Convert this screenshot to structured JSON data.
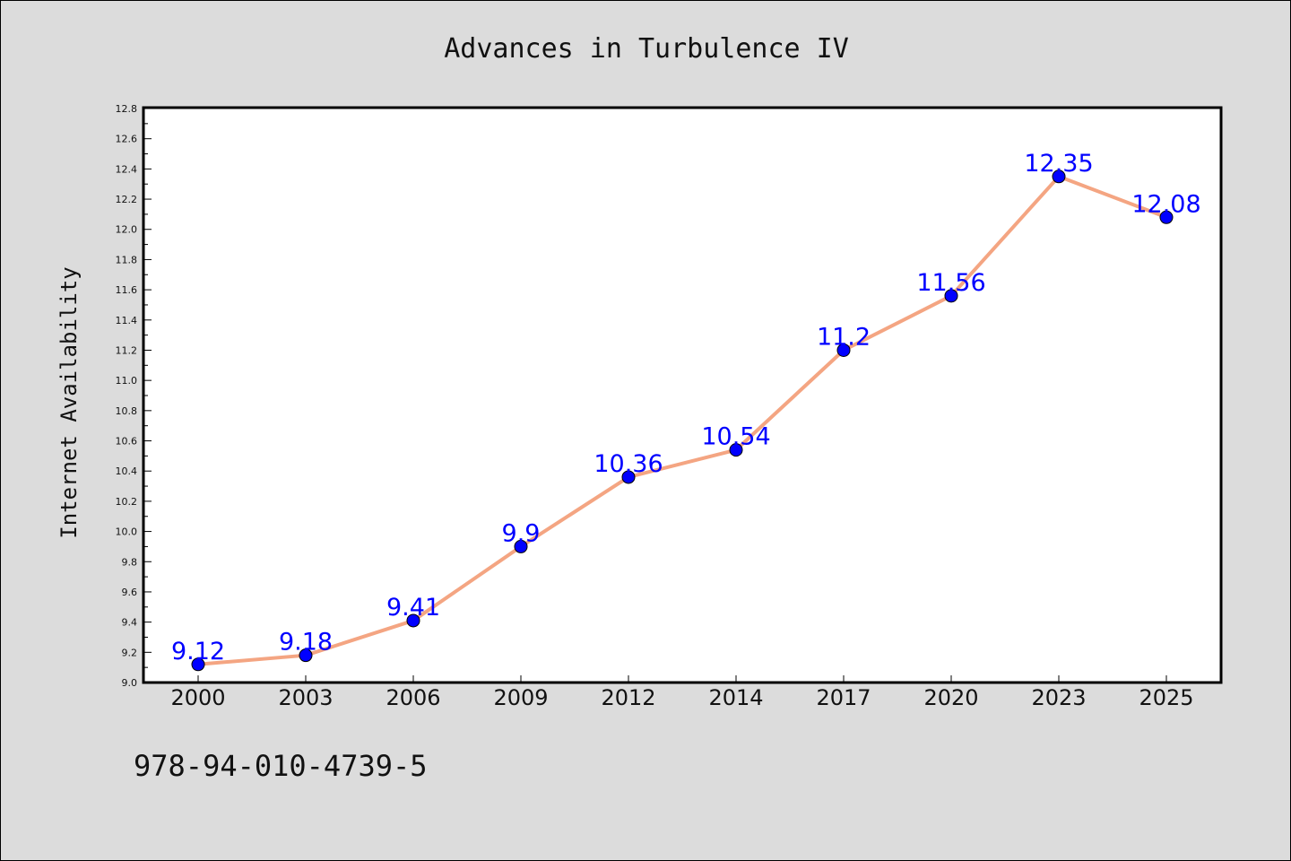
{
  "chart_data": {
    "type": "line",
    "title": "Advances in Turbulence IV",
    "xlabel": "",
    "ylabel": "Internet Availability",
    "categories": [
      "2000",
      "2003",
      "2006",
      "2009",
      "2012",
      "2014",
      "2017",
      "2020",
      "2023",
      "2025"
    ],
    "values": [
      9.12,
      9.18,
      9.41,
      9.9,
      10.36,
      10.54,
      11.2,
      11.56,
      12.35,
      12.08
    ],
    "data_labels": [
      "9.12",
      "9.18",
      "9.41",
      "9.9",
      "10.36",
      "10.54",
      "11.2",
      "11.56",
      "12.35",
      "12.08"
    ],
    "ylim": [
      9.0,
      12.8
    ],
    "yticks": [
      "9.0",
      "9.2",
      "9.4",
      "9.6",
      "9.8",
      "10.0",
      "10.2",
      "10.4",
      "10.6",
      "10.8",
      "11.0",
      "11.2",
      "11.4",
      "11.6",
      "11.8",
      "12.0",
      "12.2",
      "12.4",
      "12.6",
      "12.8"
    ],
    "grid": false,
    "line_color": "#f4a582",
    "marker_color": "#0000ff",
    "label_color": "#0000ff"
  },
  "footer": {
    "isbn": "978-94-010-4739-5"
  }
}
